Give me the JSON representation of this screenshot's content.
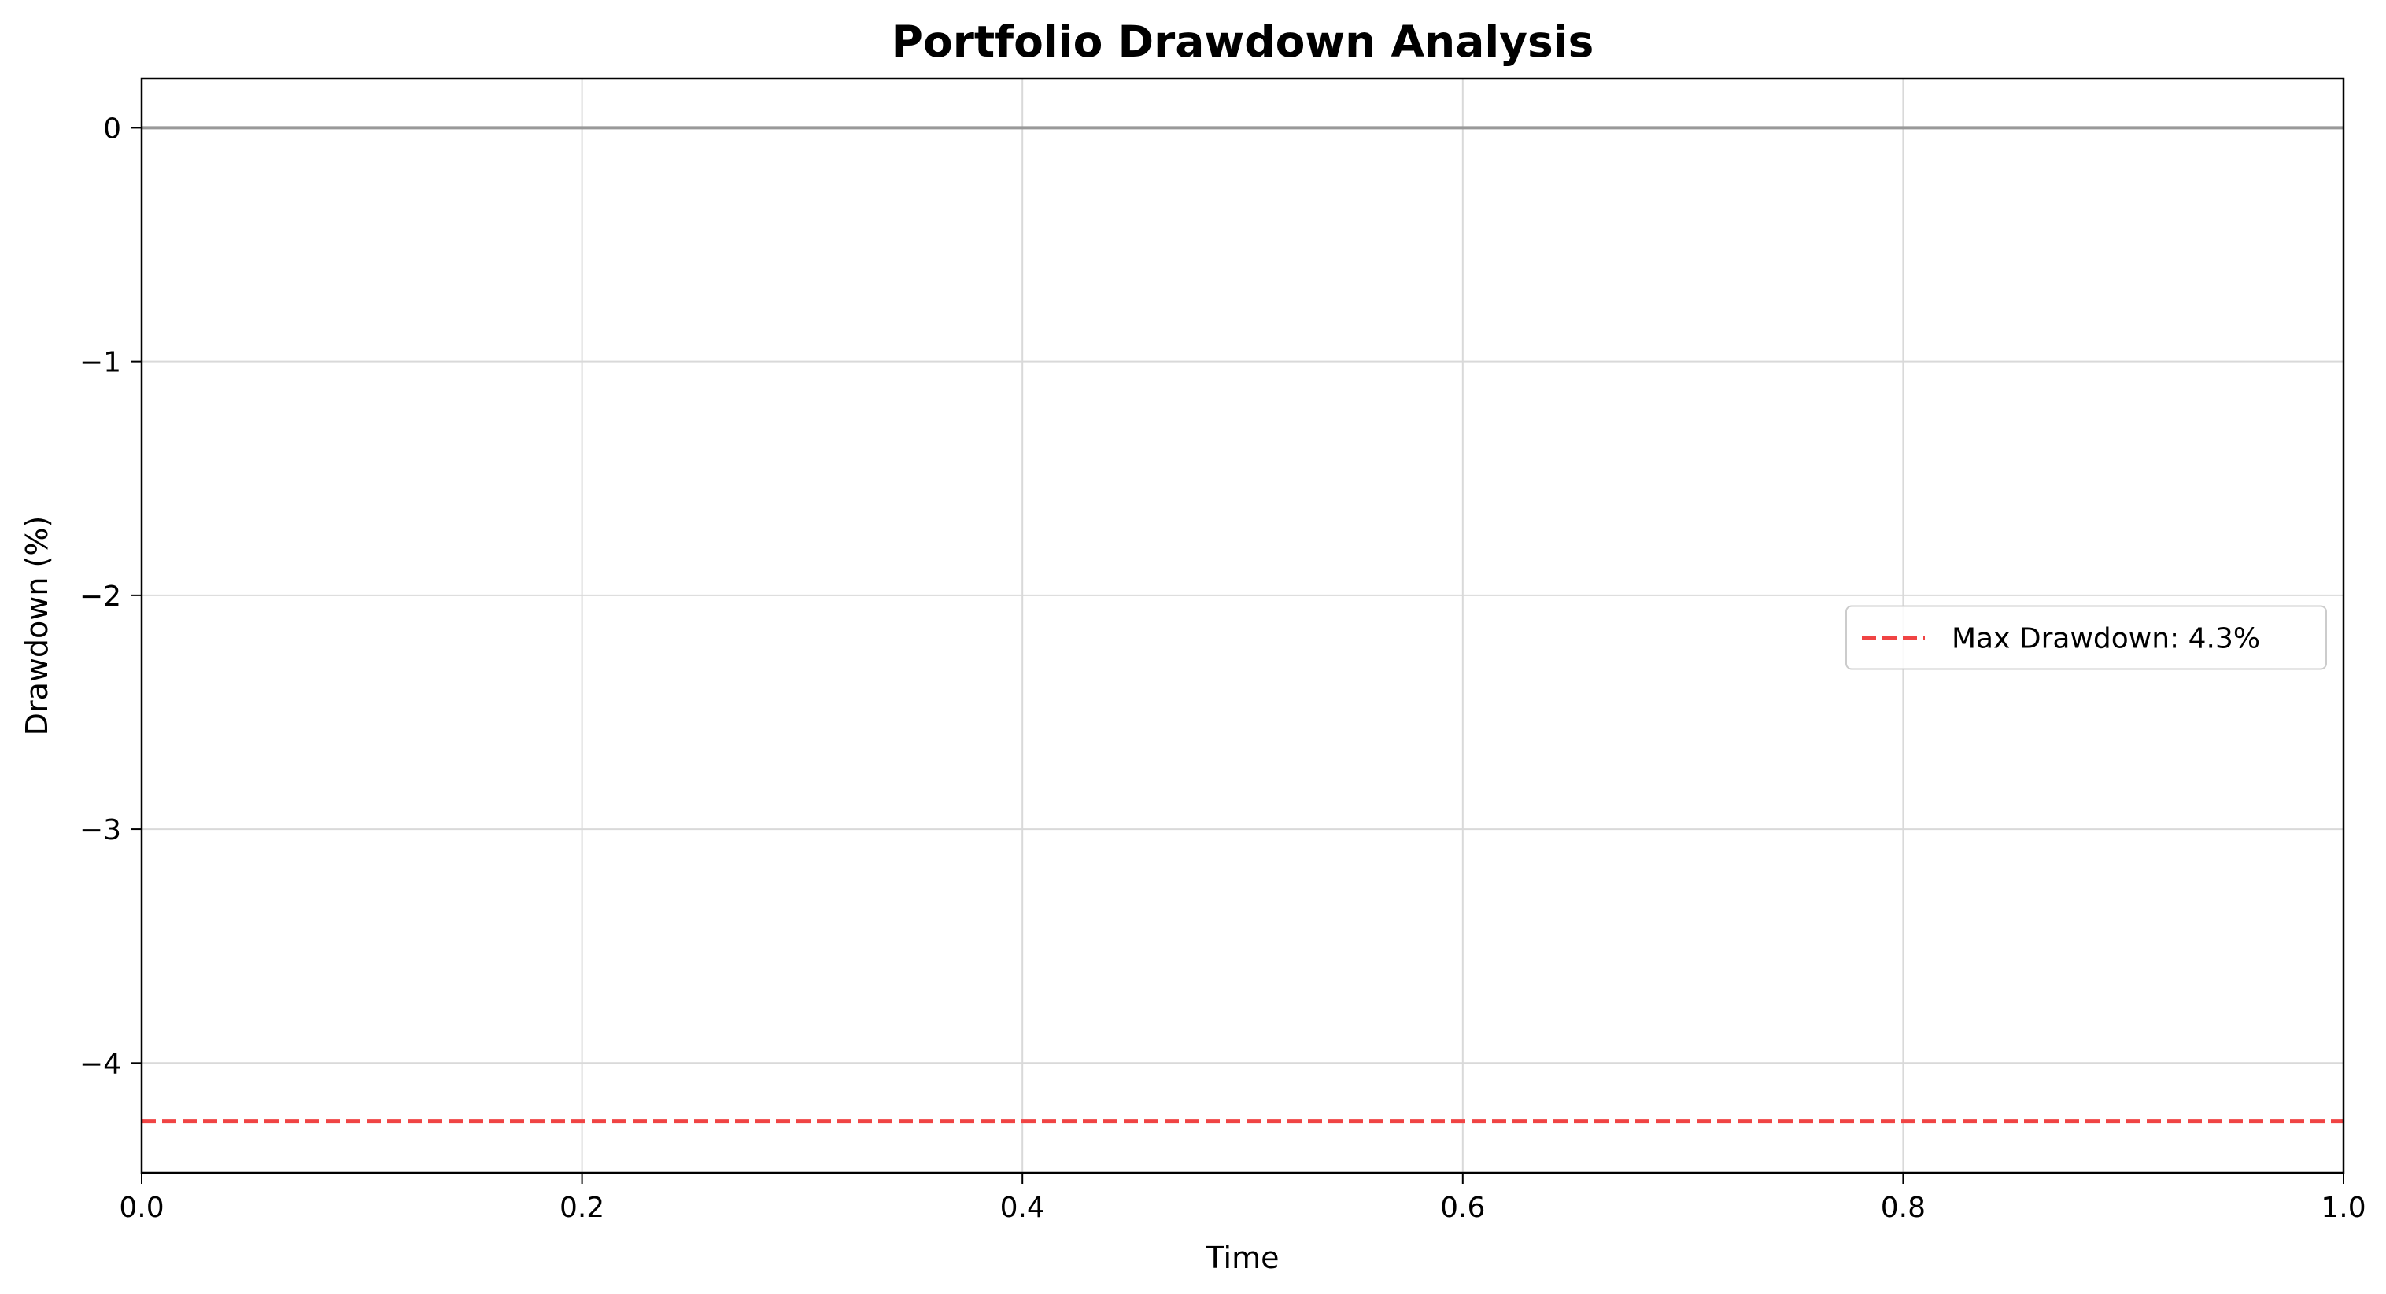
{
  "chart_data": {
    "type": "line",
    "title": "Portfolio Drawdown Analysis",
    "xlabel": "Time",
    "ylabel": "Drawdown (%)",
    "xlim": [
      0.0,
      1.0
    ],
    "ylim": [
      -4.47,
      0.21
    ],
    "xticks": [
      0.0,
      0.2,
      0.4,
      0.6,
      0.8,
      1.0
    ],
    "xtick_labels": [
      "0.0",
      "0.2",
      "0.4",
      "0.6",
      "0.8",
      "1.0"
    ],
    "yticks": [
      0,
      -1,
      -2,
      -3,
      -4
    ],
    "ytick_labels": [
      "0",
      "−1",
      "−2",
      "−3",
      "−4"
    ],
    "grid": true,
    "legend_position": "center-right",
    "reference_lines": [
      {
        "y": 0,
        "color": "#999999",
        "style": "solid",
        "in_legend": false
      },
      {
        "name": "Max Drawdown: 4.3%",
        "y": -4.25,
        "color": "#f04444",
        "style": "dashed",
        "in_legend": true
      }
    ]
  }
}
